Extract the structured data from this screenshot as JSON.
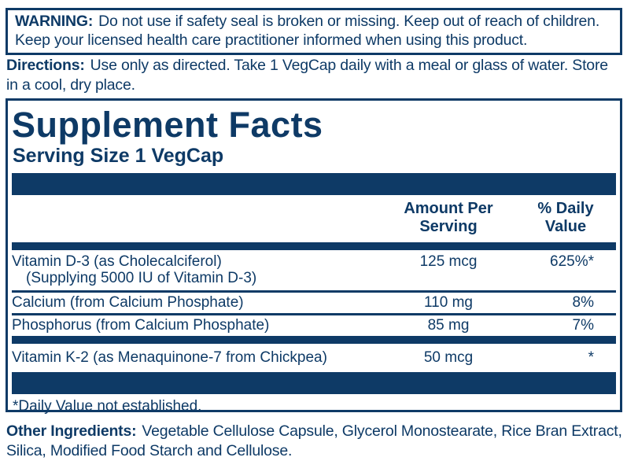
{
  "colors": {
    "navy": "#0e3a66",
    "background": "#ffffff"
  },
  "warning": {
    "label": "WARNING:",
    "line1": "Do not use if safety seal is broken or missing. Keep out of reach of children.",
    "line2": "Keep your licensed health care practitioner informed when using this product."
  },
  "directions": {
    "label": "Directions:",
    "line1": "Use only as directed. Take 1 VegCap daily with a meal or glass of water. Store",
    "line2": "in a cool, dry place."
  },
  "supplement_facts": {
    "title": "Supplement Facts",
    "serving_size": "Serving Size 1 VegCap",
    "columns": {
      "amount": "Amount Per Serving",
      "daily_value": "% Daily Value"
    },
    "rows": [
      {
        "name": "Vitamin D-3 (as Cholecalciferol)",
        "name_line2": "(Supplying 5000 IU of Vitamin D-3)",
        "amount": "125 mcg",
        "daily_value": "625%*"
      },
      {
        "name": "Calcium (from Calcium Phosphate)",
        "amount": "110 mg",
        "daily_value": "8%"
      },
      {
        "name": "Phosphorus (from Calcium Phosphate)",
        "amount": "85 mg",
        "daily_value": "7%"
      },
      {
        "name": "Vitamin K-2 (as Menaquinone-7 from Chickpea)",
        "amount": "50 mcg",
        "daily_value": "*"
      }
    ],
    "footnote": "*Daily Value not established."
  },
  "other_ingredients": {
    "label": "Other Ingredients:",
    "line1": "Vegetable Cellulose Capsule, Glycerol Monostearate, Rice Bran Extract,",
    "line2": "Silica, Modified Food Starch and Cellulose."
  }
}
